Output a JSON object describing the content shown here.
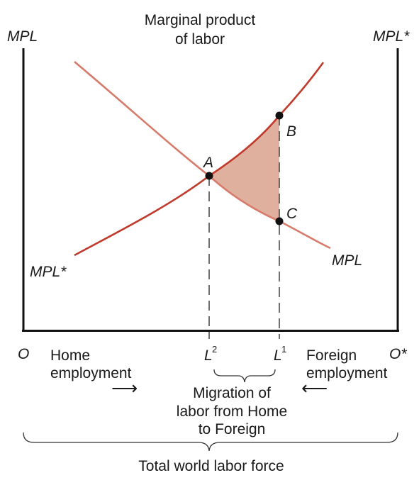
{
  "title": {
    "line1": "Marginal product",
    "line2": "of labor"
  },
  "axes": {
    "left_axis_label": "MPL",
    "right_axis_label": "MPL*",
    "left_origin": "O",
    "right_origin": "O*"
  },
  "curves": {
    "mpl_label": "MPL",
    "mpl_star_label": "MPL*"
  },
  "points": {
    "a": "A",
    "b": "B",
    "c": "C"
  },
  "quantities": {
    "l2_letter": "L",
    "l2_sup": "2",
    "l1_letter": "L",
    "l1_sup": "1"
  },
  "annotations": {
    "home_line1": "Home",
    "home_line2": "employment",
    "foreign_line1": "Foreign",
    "foreign_line2": "employment",
    "home_arrow": "⟶",
    "foreign_arrow": "⟵",
    "migration_line1": "Migration of",
    "migration_line2": "labor from Home",
    "migration_line3": "to Foreign",
    "total_labor": "Total world labor force"
  },
  "colors": {
    "curve": "#c0392b",
    "mpl_curve": "#d67b6a",
    "shaded_area": "#e0b09f",
    "axis": "#111111",
    "text": "#1a1a1a"
  }
}
